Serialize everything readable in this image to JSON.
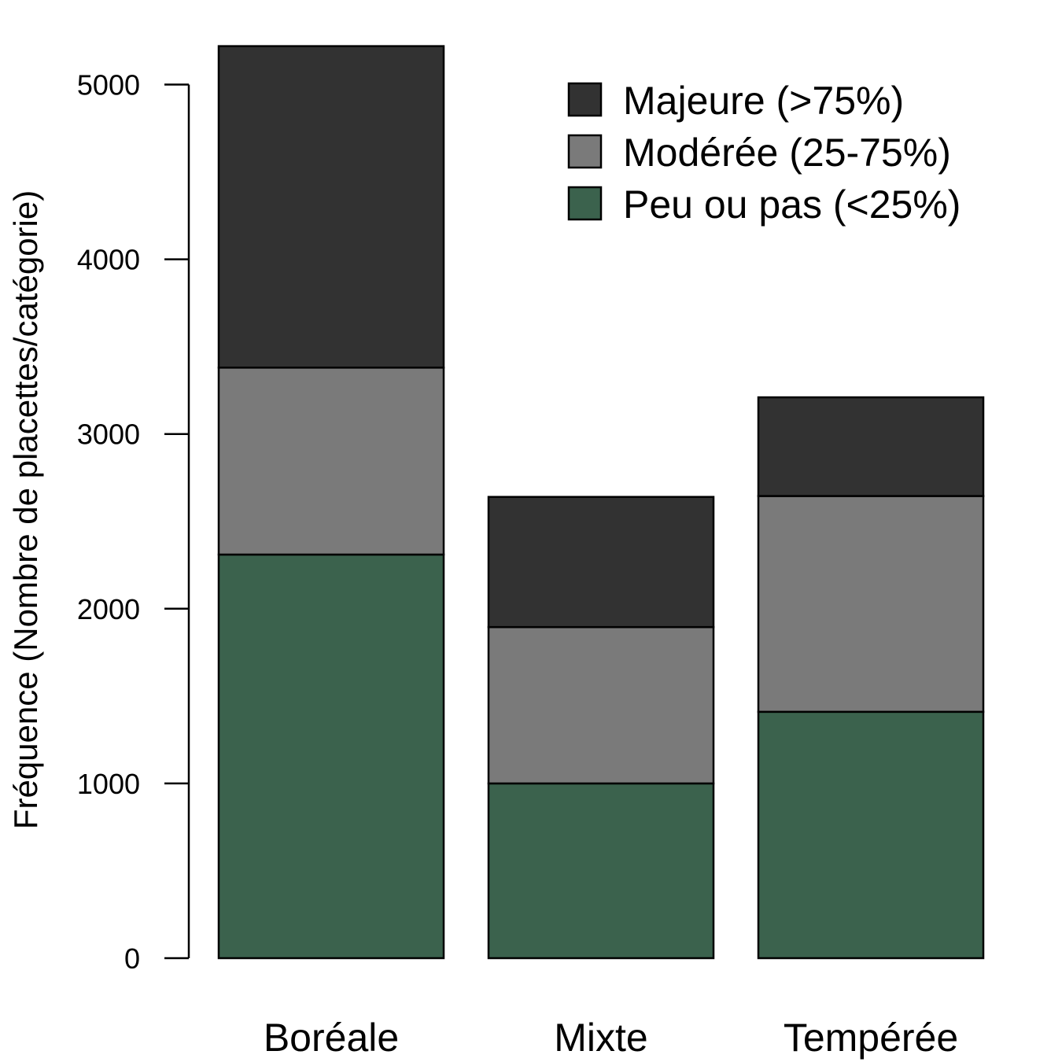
{
  "chart_data": {
    "type": "bar",
    "stacked": true,
    "categories": [
      "Boréale",
      "Mixte",
      "Tempérée"
    ],
    "series": [
      {
        "name": "Peu ou pas (<25%)",
        "color": "#3b624d",
        "values": [
          2310,
          1000,
          1410
        ]
      },
      {
        "name": "Modérée (25-75%)",
        "color": "#7a7a7a",
        "values": [
          1070,
          895,
          1235
        ]
      },
      {
        "name": "Majeure (>75%)",
        "color": "#323232",
        "values": [
          1840,
          745,
          565
        ]
      }
    ],
    "legend_order": [
      "Majeure (>75%)",
      "Modérée (25-75%)",
      "Peu ou pas (<25%)"
    ],
    "ylabel": "Fréquence (Nombre de placettes/catégorie)",
    "xlabel": "",
    "ylim": [
      0,
      5000
    ],
    "yticks": [
      0,
      1000,
      2000,
      3000,
      4000,
      5000
    ],
    "grid": false,
    "legend_position": "top-right"
  }
}
